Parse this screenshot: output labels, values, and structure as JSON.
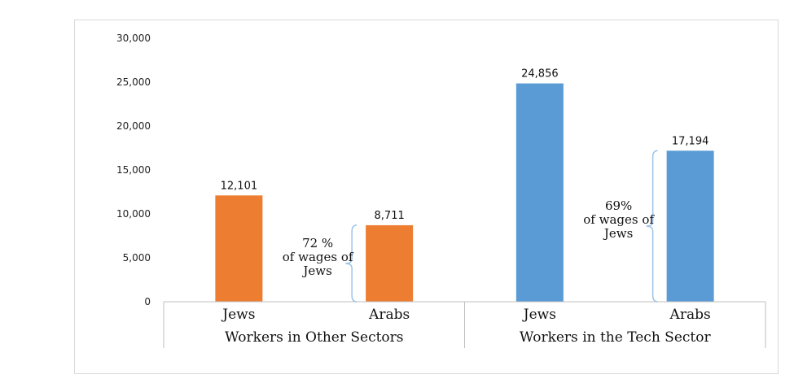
{
  "chart_data": {
    "type": "bar",
    "title": "",
    "xlabel": "",
    "ylabel": "",
    "ylim": [
      0,
      30000
    ],
    "yticks": [
      "0",
      "5,000",
      "10,000",
      "15,000",
      "20,000",
      "25,000",
      "30,000"
    ],
    "grid": false,
    "groups": [
      {
        "name": "Workers in Other Sectors",
        "color": "#ED7D31",
        "bars": [
          {
            "category": "Jews",
            "value": 12101,
            "label": "12,101"
          },
          {
            "category": "Arabs",
            "value": 8711,
            "label": "8,711"
          }
        ],
        "annotation": [
          "72 %",
          "of wages of",
          "Jews"
        ]
      },
      {
        "name": "Workers in the Tech Sector",
        "color": "#5B9BD5",
        "bars": [
          {
            "category": "Jews",
            "value": 24856,
            "label": "24,856"
          },
          {
            "category": "Arabs",
            "value": 17194,
            "label": "17,194"
          }
        ],
        "annotation": [
          "69%",
          "of wages of",
          "Jews"
        ]
      }
    ]
  },
  "colors": {
    "axis": "#bfbfbf",
    "bracket": "#9dc3e6"
  }
}
